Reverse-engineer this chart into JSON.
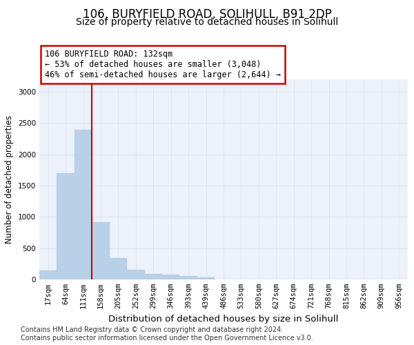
{
  "title1": "106, BURYFIELD ROAD, SOLIHULL, B91 2DP",
  "title2": "Size of property relative to detached houses in Solihull",
  "xlabel": "Distribution of detached houses by size in Solihull",
  "ylabel": "Number of detached properties",
  "bar_color": "#b8d0e8",
  "bar_edge_color": "#b8d0e8",
  "bin_labels": [
    "17sqm",
    "64sqm",
    "111sqm",
    "158sqm",
    "205sqm",
    "252sqm",
    "299sqm",
    "346sqm",
    "393sqm",
    "439sqm",
    "486sqm",
    "533sqm",
    "580sqm",
    "627sqm",
    "674sqm",
    "721sqm",
    "768sqm",
    "815sqm",
    "862sqm",
    "909sqm",
    "956sqm"
  ],
  "bar_values": [
    140,
    1700,
    2390,
    920,
    340,
    160,
    90,
    75,
    50,
    30,
    5,
    0,
    0,
    0,
    0,
    0,
    0,
    0,
    0,
    0,
    0
  ],
  "ylim": [
    0,
    3200
  ],
  "yticks": [
    0,
    500,
    1000,
    1500,
    2000,
    2500,
    3000
  ],
  "vline_bin_index": 2,
  "annotation_text": "106 BURYFIELD ROAD: 132sqm\n← 53% of detached houses are smaller (3,048)\n46% of semi-detached houses are larger (2,644) →",
  "annotation_box_color": "#ffffff",
  "annotation_box_edge": "#cc0000",
  "vline_color": "#cc0000",
  "grid_color": "#dde3ee",
  "background_color": "#edf1f9",
  "footer_text": "Contains HM Land Registry data © Crown copyright and database right 2024.\nContains public sector information licensed under the Open Government Licence v3.0.",
  "title1_fontsize": 12,
  "title2_fontsize": 10,
  "xlabel_fontsize": 9.5,
  "ylabel_fontsize": 8.5,
  "tick_fontsize": 7.5,
  "footer_fontsize": 7
}
